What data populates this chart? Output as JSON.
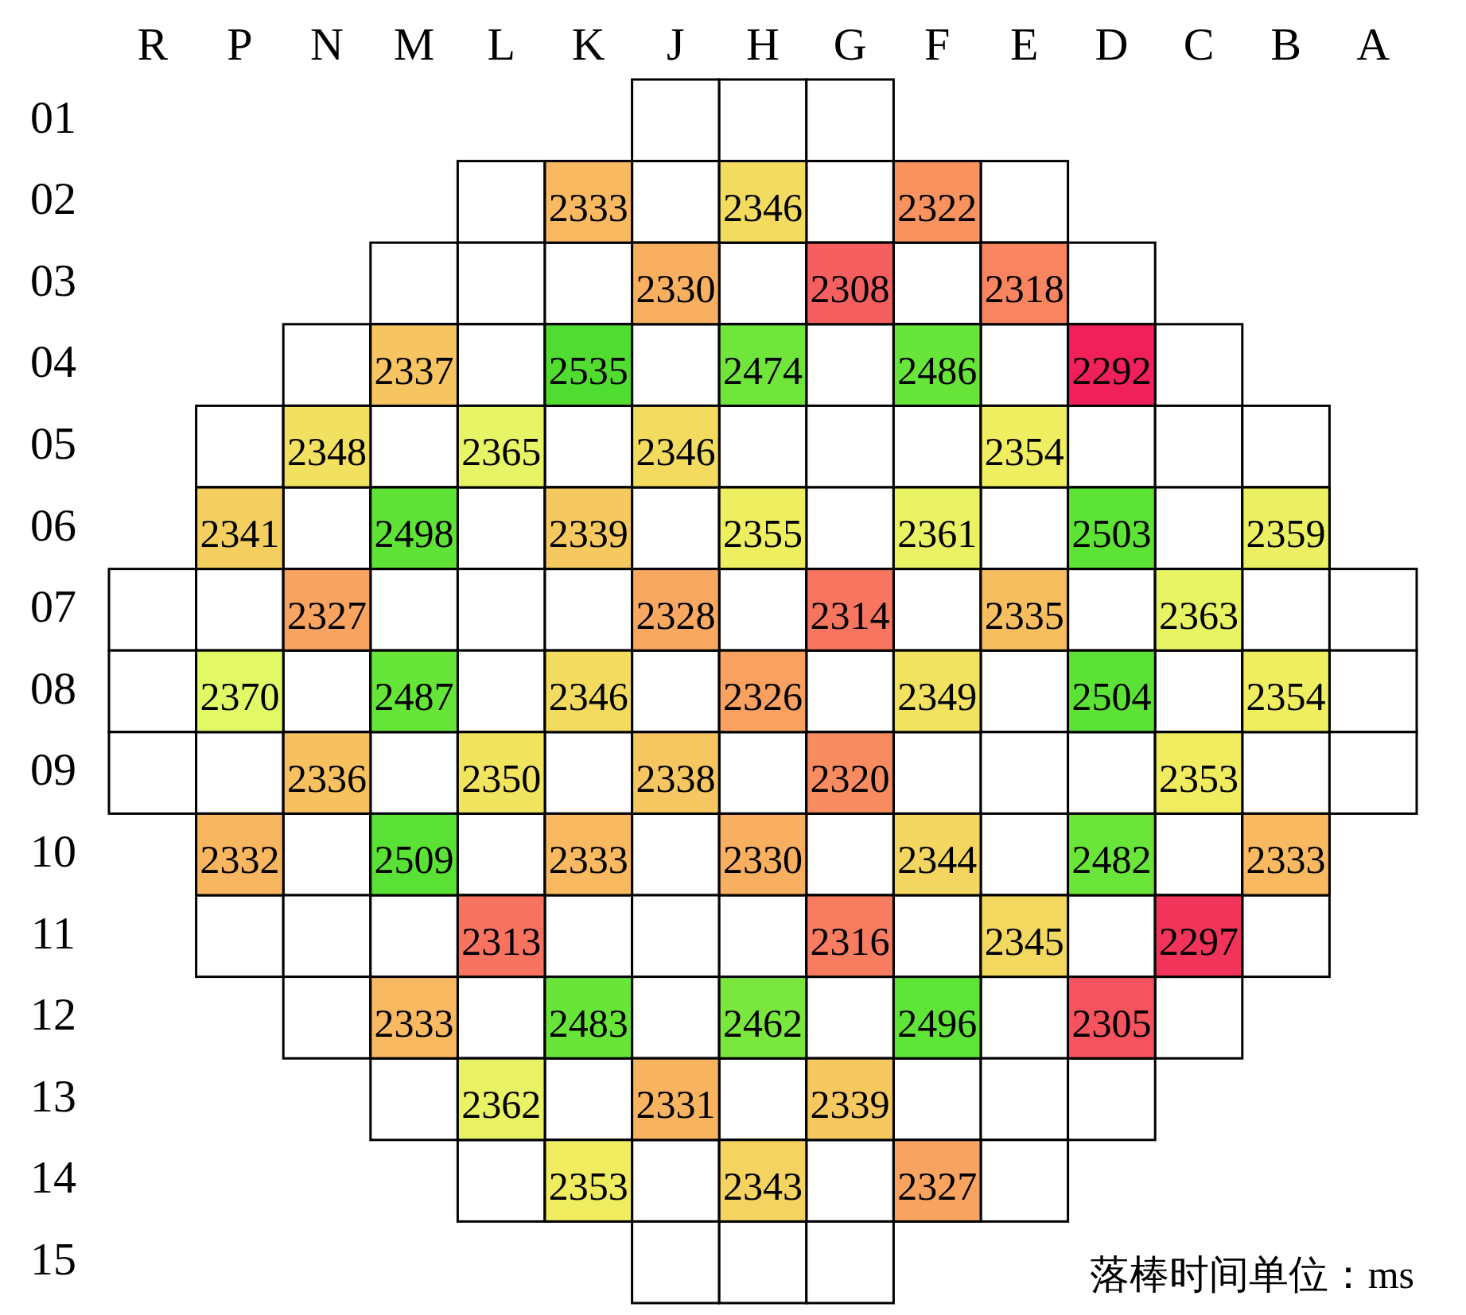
{
  "chart_data": {
    "type": "heatmap",
    "categories": [
      "R",
      "P",
      "N",
      "M",
      "L",
      "K",
      "J",
      "H",
      "G",
      "F",
      "E",
      "D",
      "C",
      "B",
      "A"
    ],
    "y_categories": [
      "01",
      "02",
      "03",
      "04",
      "05",
      "06",
      "07",
      "08",
      "09",
      "10",
      "11",
      "12",
      "13",
      "14",
      "15"
    ],
    "cells": [
      [
        null,
        null,
        null,
        null,
        null,
        null,
        null,
        null,
        null,
        null,
        null,
        null,
        null,
        null,
        null
      ],
      [
        null,
        null,
        null,
        null,
        null,
        2333,
        null,
        2346,
        null,
        2322,
        null,
        null,
        null,
        null,
        null
      ],
      [
        null,
        null,
        null,
        null,
        null,
        null,
        2330,
        null,
        2308,
        null,
        2318,
        null,
        null,
        null,
        null
      ],
      [
        null,
        null,
        null,
        2337,
        null,
        2535,
        null,
        2474,
        null,
        2486,
        null,
        2292,
        null,
        null,
        null
      ],
      [
        null,
        null,
        2348,
        null,
        2365,
        null,
        2346,
        null,
        null,
        null,
        2354,
        null,
        null,
        null,
        null
      ],
      [
        null,
        2341,
        null,
        2498,
        null,
        2339,
        null,
        2355,
        null,
        2361,
        null,
        2503,
        null,
        2359,
        null
      ],
      [
        null,
        null,
        2327,
        null,
        null,
        null,
        2328,
        null,
        2314,
        null,
        2335,
        null,
        2363,
        null,
        null
      ],
      [
        null,
        2370,
        null,
        2487,
        null,
        2346,
        null,
        2326,
        null,
        2349,
        null,
        2504,
        null,
        2354,
        null
      ],
      [
        null,
        null,
        2336,
        null,
        2350,
        null,
        2338,
        null,
        2320,
        null,
        null,
        null,
        2353,
        null,
        null
      ],
      [
        null,
        2332,
        null,
        2509,
        null,
        2333,
        null,
        2330,
        null,
        2344,
        null,
        2482,
        null,
        2333,
        null
      ],
      [
        null,
        null,
        null,
        null,
        2313,
        null,
        null,
        null,
        2316,
        null,
        2345,
        null,
        2297,
        null,
        null
      ],
      [
        null,
        null,
        null,
        2333,
        null,
        2483,
        null,
        2462,
        null,
        2496,
        null,
        2305,
        null,
        null,
        null
      ],
      [
        null,
        null,
        null,
        null,
        2362,
        null,
        2331,
        null,
        2339,
        null,
        null,
        null,
        null,
        null,
        null
      ],
      [
        null,
        null,
        null,
        null,
        null,
        2353,
        null,
        2343,
        null,
        2327,
        null,
        null,
        null,
        null,
        null
      ],
      [
        null,
        null,
        null,
        null,
        null,
        null,
        null,
        null,
        null,
        null,
        null,
        null,
        null,
        null,
        null
      ]
    ],
    "colors": [
      "#f0205a",
      "#f87060",
      "#f8b860",
      "#f0ec60",
      "#e0fa68",
      "#c8f060",
      "#b0f050",
      "#98ec48",
      "#80e840",
      "#70e63c",
      "#60e438",
      "#58e034",
      "#50dc30"
    ],
    "data_labels": true,
    "annotations": [
      "落棒时间单位：ms"
    ]
  }
}
